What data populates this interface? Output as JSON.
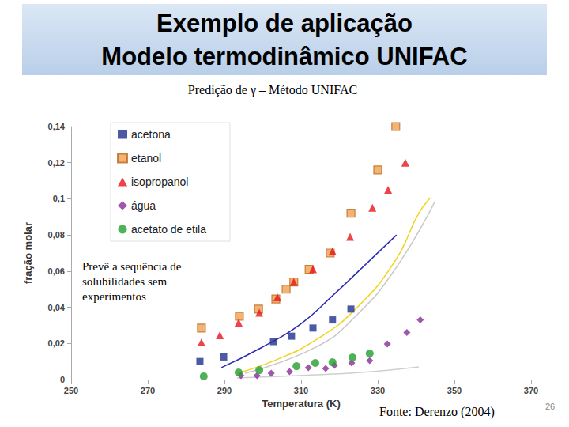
{
  "chart_data": {
    "type": "scatter",
    "title": [
      "Exemplo de aplicação",
      "Modelo termodinâmico UNIFAC"
    ],
    "subtitle": "Predição de γ – Método UNIFAC",
    "annotation": [
      "Prevê a sequência de",
      "solubilidades sem",
      "experimentos"
    ],
    "source": "Fonte: Derenzo (2004)",
    "page": "26",
    "x_label": "Temperatura (K)",
    "y_label": "fração molar",
    "xlim": [
      250,
      370
    ],
    "xticks": [
      250,
      270,
      290,
      310,
      330,
      350,
      370
    ],
    "ylim": [
      0,
      0.14
    ],
    "yticks": [
      0,
      {
        "value": 0.02,
        "label": "0,02"
      },
      {
        "value": 0.04,
        "label": "0,04"
      },
      {
        "value": 0.06,
        "label": "0,06"
      },
      {
        "value": 0.08,
        "label": "0,08"
      },
      {
        "value": 0.1,
        "label": "0,1"
      },
      {
        "value": 0.12,
        "label": "0,12"
      },
      {
        "value": 0.14,
        "label": "0,14"
      }
    ],
    "grid": false,
    "legend": "upper left",
    "series": [
      {
        "name": "acetona",
        "type": "scatter",
        "color": "#1f2f8f",
        "marker": "square",
        "x": [
          283.6,
          289.8,
          302.8,
          307.5,
          313.1,
          318.2,
          323.0
        ],
        "values": [
          0.01,
          0.0125,
          0.021,
          0.024,
          0.0285,
          0.033,
          0.039
        ]
      },
      {
        "name": "etanol",
        "type": "scatter",
        "color": "#f0a050",
        "marker": "square-x",
        "x": [
          284.0,
          293.9,
          298.9,
          303.4,
          306.1,
          308.1,
          312.1,
          317.6,
          323.0,
          330.0,
          334.7
        ],
        "values": [
          0.0285,
          0.035,
          0.039,
          0.0446,
          0.05,
          0.054,
          0.061,
          0.07,
          0.092,
          0.116,
          0.14
        ]
      },
      {
        "name": "isopropanol",
        "type": "scatter",
        "color": "#e8141c",
        "marker": "triangle",
        "x": [
          284.0,
          288.8,
          293.7,
          299.1,
          303.8,
          308.1,
          313.1,
          318.2,
          322.8,
          328.6,
          332.7,
          337.2
        ],
        "values": [
          0.0206,
          0.0245,
          0.0315,
          0.037,
          0.0455,
          0.054,
          0.061,
          0.071,
          0.079,
          0.095,
          0.105,
          0.12
        ]
      },
      {
        "name": "água",
        "type": "scatter",
        "color": "#8a2c9a",
        "marker": "diamond",
        "x": [
          294.3,
          298.5,
          302.2,
          307.0,
          311.9,
          316.4,
          318.7,
          323.2,
          327.9,
          332.5,
          337.6,
          341.1
        ],
        "values": [
          0.0022,
          0.0022,
          0.0035,
          0.0044,
          0.0066,
          0.0061,
          0.0079,
          0.0092,
          0.0105,
          0.0197,
          0.026,
          0.033
        ]
      },
      {
        "name": "acetato de etila",
        "type": "scatter",
        "color": "#22a02c",
        "marker": "circle",
        "x": [
          284.6,
          293.7,
          299.1,
          308.8,
          313.7,
          318.2,
          323.4,
          327.9
        ],
        "values": [
          0.0018,
          0.0039,
          0.0052,
          0.0074,
          0.0092,
          0.0096,
          0.0122,
          0.0144
        ]
      },
      {
        "type": "line",
        "color": "#2b2bb5",
        "line_style": "solid",
        "x": [
          289.2,
          299.5,
          309.8,
          318.0,
          326.3,
          334.9
        ],
        "values": [
          0.0066,
          0.0175,
          0.0306,
          0.046,
          0.0626,
          0.08
        ]
      },
      {
        "type": "line",
        "color": "#f2d31b",
        "line_style": "solid",
        "x": [
          293.3,
          303.6,
          313.9,
          324.2,
          334.5,
          340.7,
          343.8
        ],
        "values": [
          0.0035,
          0.011,
          0.022,
          0.039,
          0.0656,
          0.092,
          0.1006
        ]
      },
      {
        "type": "line",
        "color": "#c8c8c8",
        "line_style": "solid",
        "x": [
          295.4,
          313.9,
          324.2,
          334.5,
          344.8
        ],
        "values": [
          0.0035,
          0.018,
          0.035,
          0.061,
          0.098
        ]
      },
      {
        "type": "line",
        "color": "#cfcfcf",
        "line_style": "solid",
        "x": [
          293.3,
          313.9,
          328.4,
          340.7
        ],
        "values": [
          0.0009,
          0.0026,
          0.0044,
          0.007
        ]
      }
    ]
  }
}
